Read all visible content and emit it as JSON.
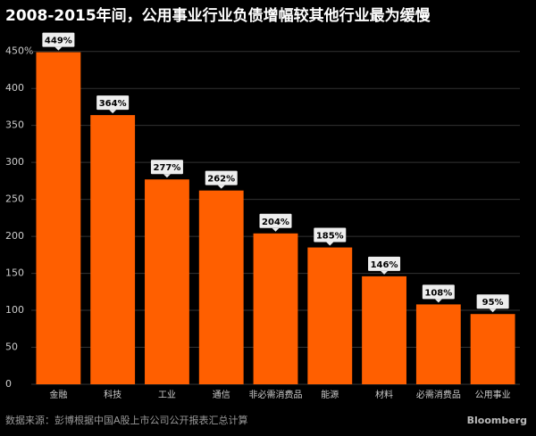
{
  "chart_data": {
    "type": "bar",
    "title": "2008-2015年间，公用事业行业负债增幅较其他行业最为缓慢",
    "source": "数据来源：彭博根据中国A股上市公司公开报表汇总计算",
    "brand": "Bloomberg",
    "categories": [
      "金融",
      "科技",
      "工业",
      "通信",
      "非必需消费品",
      "能源",
      "材料",
      "必需消费品",
      "公用事业"
    ],
    "values": [
      449,
      364,
      277,
      262,
      204,
      185,
      146,
      108,
      95
    ],
    "value_labels": [
      "449%",
      "364%",
      "277%",
      "262%",
      "204%",
      "185%",
      "146%",
      "108%",
      "95%"
    ],
    "color": "#ff5f00",
    "ylim": [
      0,
      475
    ],
    "yticks": [
      0,
      50,
      100,
      150,
      200,
      250,
      300,
      350,
      400,
      {
        "value": 450,
        "label": "450%"
      }
    ],
    "grid": true
  }
}
